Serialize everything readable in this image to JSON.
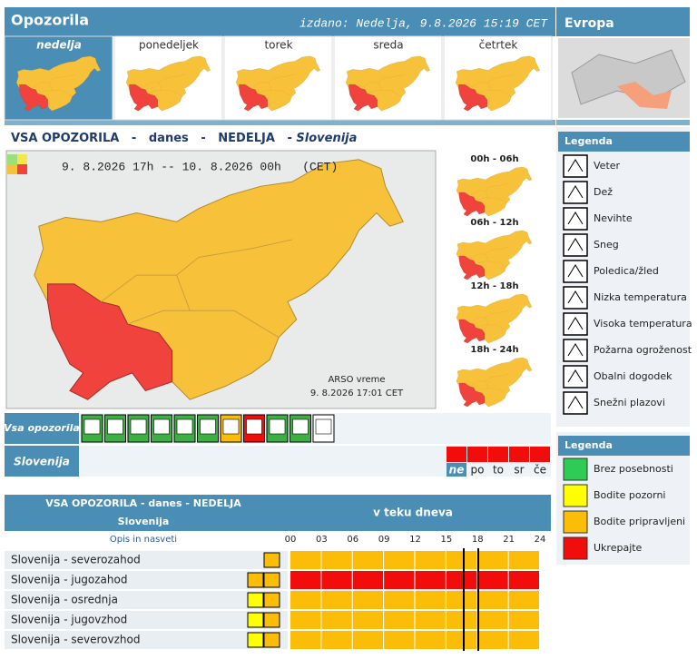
{
  "header": {
    "title": "Opozorila",
    "issued": "izdano: Nedelja, 9.8.2026 15:19 CET",
    "europe": "Evropa"
  },
  "day_tabs": [
    "nedelja",
    "ponedeljek",
    "torek",
    "sreda",
    "četrtek"
  ],
  "section": {
    "title": "VSA OPOZORILA   -   danes   -   NEDELJA   -",
    "region": "Slovenija"
  },
  "map": {
    "period": "9. 8.2026 17h -- 10. 8.2026 00h   (CET)",
    "source": "ARSO vreme",
    "timestamp": "9. 8.2026 17:01 CET"
  },
  "time_slots": [
    "00h - 06h",
    "06h - 12h",
    "12h - 18h",
    "18h - 24h"
  ],
  "summary": {
    "all_label": "Vsa opozorila",
    "region_label": "Slovenija",
    "days": [
      "ne",
      "po",
      "to",
      "sr",
      "če"
    ]
  },
  "legend_hazards": {
    "title": "Legenda",
    "items": [
      "Veter",
      "Dež",
      "Nevihte",
      "Sneg",
      "Poledica/žled",
      "Nizka temperatura",
      "Visoka temperatura",
      "Požarna ogroženost",
      "Obalni dogodek",
      "Snežni plazovi"
    ]
  },
  "legend_levels": {
    "title": "Legenda",
    "items": [
      {
        "label": "Brez posebnosti",
        "color": "#2ecc55"
      },
      {
        "label": "Bodite pozorni",
        "color": "#ffff00"
      },
      {
        "label": "Bodite pripravljeni",
        "color": "#fbbd08"
      },
      {
        "label": "Ukrepajte",
        "color": "#f20d0d"
      }
    ]
  },
  "table": {
    "title": "VSA OPOZORILA - danes - NEDELJA",
    "region": "Slovenija",
    "timeline_title": "v teku dneva",
    "description_header": "Opis in nasveti",
    "hours": [
      "00",
      "03",
      "06",
      "09",
      "12",
      "15",
      "18",
      "21",
      "24"
    ],
    "rows": [
      {
        "name": "Slovenija - severozahod",
        "color": "#fbbd08"
      },
      {
        "name": "Slovenija - jugozahod",
        "color": "#f20d0d"
      },
      {
        "name": "Slovenija - osrednja",
        "color": "#fbbd08"
      },
      {
        "name": "Slovenija - jugovzhod",
        "color": "#fbbd08"
      },
      {
        "name": "Slovenija - severovzhod",
        "color": "#fbbd08"
      }
    ]
  }
}
